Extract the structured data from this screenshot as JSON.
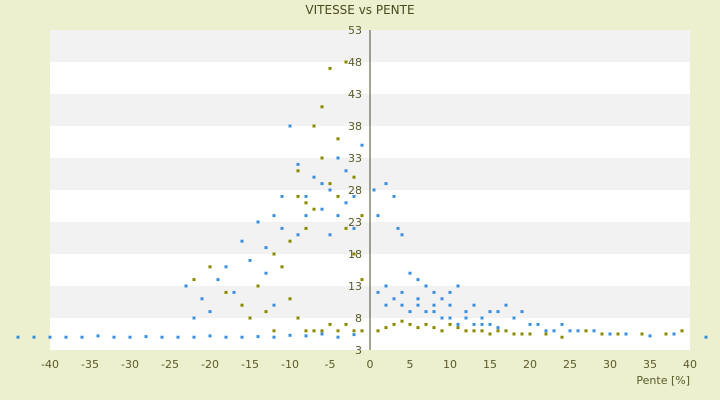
{
  "chart_data": {
    "type": "scatter",
    "title": "VITESSE vs PENTE",
    "xlabel": "Pente [%]",
    "ylabel": "",
    "xlim": [
      -40,
      40
    ],
    "ylim": [
      3,
      53
    ],
    "xticks": [
      -40,
      -35,
      -30,
      -25,
      -20,
      -15,
      -10,
      -5,
      0,
      5,
      10,
      15,
      20,
      25,
      30,
      35,
      40
    ],
    "yticks": [
      3,
      8,
      13,
      18,
      23,
      28,
      33,
      38,
      43,
      48,
      53
    ],
    "grid": "horizontal alternating bands",
    "legend": "none",
    "colors": {
      "background": "#ecf0ce",
      "plot_band_light": "#ffffff",
      "plot_band_dark": "#f2f2f2",
      "series_blue": "#3b8fd9",
      "series_olive": "#8a8a00",
      "text": "#5a5a2a"
    },
    "series": [
      {
        "color": "#3b8fd9",
        "points": [
          [
            -44,
            5
          ],
          [
            -42,
            5
          ],
          [
            -40,
            5
          ],
          [
            -38,
            5
          ],
          [
            -36,
            5
          ],
          [
            -34,
            5.2
          ],
          [
            -32,
            5
          ],
          [
            -30,
            5
          ],
          [
            -28,
            5.1
          ],
          [
            -26,
            5
          ],
          [
            -24,
            5
          ],
          [
            -22,
            5
          ],
          [
            -20,
            5.2
          ],
          [
            -18,
            5
          ],
          [
            -16,
            5
          ],
          [
            -14,
            5.1
          ],
          [
            -12,
            5
          ],
          [
            -10,
            5.3
          ],
          [
            -8,
            5.2
          ],
          [
            -6,
            5.5
          ],
          [
            -4,
            5
          ],
          [
            -2,
            5.4
          ],
          [
            -23,
            13
          ],
          [
            -22,
            8
          ],
          [
            -21,
            11
          ],
          [
            -20,
            9
          ],
          [
            -19,
            14
          ],
          [
            -18,
            16
          ],
          [
            -17,
            12
          ],
          [
            -16,
            20
          ],
          [
            -15,
            17
          ],
          [
            -14,
            23
          ],
          [
            -13,
            19
          ],
          [
            -12,
            24
          ],
          [
            -11,
            22
          ],
          [
            -10,
            38
          ],
          [
            -9,
            32
          ],
          [
            -8,
            27
          ],
          [
            -7,
            30
          ],
          [
            -6,
            25
          ],
          [
            -5,
            28
          ],
          [
            -4,
            24
          ],
          [
            -3,
            31
          ],
          [
            -2,
            27
          ],
          [
            -1,
            35
          ],
          [
            -13,
            15
          ],
          [
            -12,
            10
          ],
          [
            -11,
            27
          ],
          [
            -9,
            21
          ],
          [
            -8,
            24
          ],
          [
            -6,
            29
          ],
          [
            -5,
            21
          ],
          [
            -4,
            33
          ],
          [
            -3,
            26
          ],
          [
            -2,
            22
          ],
          [
            0.5,
            28
          ],
          [
            1,
            24
          ],
          [
            2,
            29
          ],
          [
            3,
            27
          ],
          [
            3.5,
            22
          ],
          [
            4,
            21
          ],
          [
            5,
            15
          ],
          [
            6,
            14
          ],
          [
            7,
            13
          ],
          [
            8,
            12
          ],
          [
            9,
            11
          ],
          [
            10,
            12
          ],
          [
            11,
            13
          ],
          [
            12,
            9
          ],
          [
            13,
            10
          ],
          [
            14,
            8
          ],
          [
            15,
            9
          ],
          [
            16,
            9
          ],
          [
            17,
            10
          ],
          [
            18,
            8
          ],
          [
            19,
            9
          ],
          [
            20,
            7
          ],
          [
            21,
            7
          ],
          [
            22,
            6
          ],
          [
            23,
            6
          ],
          [
            24,
            7
          ],
          [
            25,
            6
          ],
          [
            26,
            6
          ],
          [
            28,
            6
          ],
          [
            30,
            5.5
          ],
          [
            32,
            5.5
          ],
          [
            35,
            5.2
          ],
          [
            38,
            5.5
          ],
          [
            42,
            5
          ],
          [
            1,
            12
          ],
          [
            2,
            10
          ],
          [
            3,
            11
          ],
          [
            4,
            10
          ],
          [
            5,
            9
          ],
          [
            6,
            10
          ],
          [
            7,
            9
          ],
          [
            8,
            9
          ],
          [
            9,
            8
          ],
          [
            10,
            8
          ],
          [
            11,
            7
          ],
          [
            12,
            8
          ],
          [
            13,
            7
          ],
          [
            14,
            7
          ],
          [
            15,
            7
          ],
          [
            16,
            6.5
          ],
          [
            2,
            13
          ],
          [
            4,
            12
          ],
          [
            6,
            11
          ],
          [
            8,
            10
          ],
          [
            10,
            10
          ]
        ]
      },
      {
        "color": "#8a8a00",
        "points": [
          [
            -22,
            14
          ],
          [
            -20,
            16
          ],
          [
            -18,
            12
          ],
          [
            -16,
            10
          ],
          [
            -15,
            8
          ],
          [
            -14,
            13
          ],
          [
            -13,
            9
          ],
          [
            -12,
            18
          ],
          [
            -11,
            16
          ],
          [
            -10,
            20
          ],
          [
            -9,
            31
          ],
          [
            -8,
            26
          ],
          [
            -7,
            38
          ],
          [
            -6,
            41
          ],
          [
            -5,
            47
          ],
          [
            -4,
            36
          ],
          [
            -3,
            48
          ],
          [
            -2,
            30
          ],
          [
            -1,
            24
          ],
          [
            -9,
            27
          ],
          [
            -8,
            22
          ],
          [
            -7,
            25
          ],
          [
            -6,
            33
          ],
          [
            -5,
            29
          ],
          [
            -4,
            27
          ],
          [
            -3,
            22
          ],
          [
            -2,
            18
          ],
          [
            -1,
            14
          ],
          [
            -10,
            11
          ],
          [
            -9,
            8
          ],
          [
            -8,
            6
          ],
          [
            -7,
            6
          ],
          [
            -6,
            6
          ],
          [
            -5,
            7
          ],
          [
            -4,
            6
          ],
          [
            -3,
            7
          ],
          [
            -2,
            6
          ],
          [
            -1,
            6
          ],
          [
            -12,
            6
          ],
          [
            1,
            6
          ],
          [
            2,
            6.5
          ],
          [
            3,
            7
          ],
          [
            4,
            7.5
          ],
          [
            5,
            7
          ],
          [
            6,
            6.5
          ],
          [
            7,
            7
          ],
          [
            8,
            6.5
          ],
          [
            9,
            6
          ],
          [
            10,
            7
          ],
          [
            11,
            6.5
          ],
          [
            12,
            6
          ],
          [
            13,
            6
          ],
          [
            14,
            6
          ],
          [
            15,
            5.5
          ],
          [
            16,
            6
          ],
          [
            17,
            6
          ],
          [
            18,
            5.5
          ],
          [
            19,
            5.5
          ],
          [
            20,
            5.5
          ],
          [
            22,
            5.5
          ],
          [
            24,
            5
          ],
          [
            27,
            6
          ],
          [
            29,
            5.5
          ],
          [
            31,
            5.5
          ],
          [
            34,
            5.5
          ],
          [
            37,
            5.5
          ],
          [
            39,
            6
          ]
        ]
      }
    ]
  }
}
